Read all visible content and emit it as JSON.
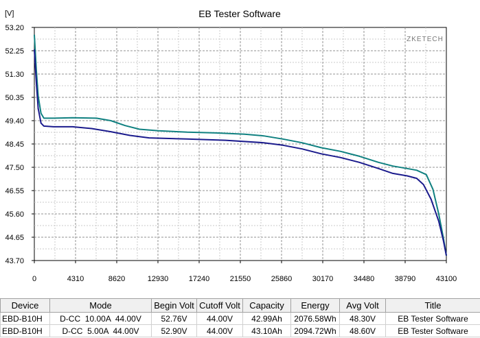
{
  "chart_data": {
    "type": "line",
    "title": "EB Tester Software",
    "brand": "ZKETECH",
    "ylabel": "[V]",
    "xlabel": "",
    "xlim": [
      0,
      43100
    ],
    "ylim": [
      43.7,
      53.2
    ],
    "x_ticks": [
      "0",
      "4310",
      "8620",
      "12930",
      "17240",
      "21550",
      "25860",
      "30170",
      "34480",
      "38790",
      "43100"
    ],
    "y_ticks": [
      "53.20",
      "52.25",
      "51.30",
      "50.35",
      "49.40",
      "48.45",
      "47.50",
      "46.55",
      "45.60",
      "44.65",
      "43.70"
    ],
    "grid": true,
    "series": [
      {
        "color": "#0f8080",
        "points": [
          [
            0,
            52.9
          ],
          [
            200,
            51.5
          ],
          [
            400,
            50.4
          ],
          [
            700,
            49.7
          ],
          [
            1000,
            49.5
          ],
          [
            2000,
            49.5
          ],
          [
            4000,
            49.52
          ],
          [
            6500,
            49.5
          ],
          [
            8000,
            49.4
          ],
          [
            9500,
            49.2
          ],
          [
            11000,
            49.05
          ],
          [
            13000,
            48.99
          ],
          [
            16000,
            48.93
          ],
          [
            19000,
            48.9
          ],
          [
            22000,
            48.85
          ],
          [
            24000,
            48.78
          ],
          [
            26000,
            48.65
          ],
          [
            28000,
            48.5
          ],
          [
            30000,
            48.3
          ],
          [
            32000,
            48.15
          ],
          [
            34000,
            47.95
          ],
          [
            36000,
            47.7
          ],
          [
            37500,
            47.55
          ],
          [
            39000,
            47.45
          ],
          [
            40000,
            47.38
          ],
          [
            41000,
            47.2
          ],
          [
            41700,
            46.6
          ],
          [
            42300,
            45.6
          ],
          [
            42800,
            44.6
          ],
          [
            43100,
            43.9
          ]
        ]
      },
      {
        "color": "#1a1a8c",
        "points": [
          [
            0,
            52.3
          ],
          [
            200,
            51.0
          ],
          [
            400,
            49.9
          ],
          [
            700,
            49.3
          ],
          [
            1000,
            49.18
          ],
          [
            2000,
            49.15
          ],
          [
            4000,
            49.15
          ],
          [
            6000,
            49.08
          ],
          [
            8000,
            48.95
          ],
          [
            10000,
            48.8
          ],
          [
            12000,
            48.7
          ],
          [
            16000,
            48.65
          ],
          [
            20000,
            48.6
          ],
          [
            24000,
            48.5
          ],
          [
            26000,
            48.4
          ],
          [
            28000,
            48.25
          ],
          [
            30000,
            48.05
          ],
          [
            32000,
            47.9
          ],
          [
            34000,
            47.7
          ],
          [
            36000,
            47.45
          ],
          [
            37500,
            47.25
          ],
          [
            39000,
            47.15
          ],
          [
            40000,
            47.05
          ],
          [
            40700,
            46.8
          ],
          [
            41500,
            46.2
          ],
          [
            42300,
            45.3
          ],
          [
            42800,
            44.5
          ],
          [
            43100,
            43.9
          ]
        ]
      }
    ]
  },
  "table": {
    "headers": [
      "Device",
      "Mode",
      "Begin Volt",
      "Cutoff Volt",
      "Capacity",
      "Energy",
      "Avg Volt",
      "Title"
    ],
    "rows": [
      [
        "EBD-B10H",
        "D-CC  10.00A  44.00V",
        "52.76V",
        "44.00V",
        "42.99Ah",
        "2076.58Wh",
        "48.30V",
        "EB Tester Software"
      ],
      [
        "EBD-B10H",
        "D-CC  5.00A  44.00V",
        "52.90V",
        "44.00V",
        "43.10Ah",
        "2094.72Wh",
        "48.60V",
        "EB Tester Software"
      ]
    ]
  }
}
